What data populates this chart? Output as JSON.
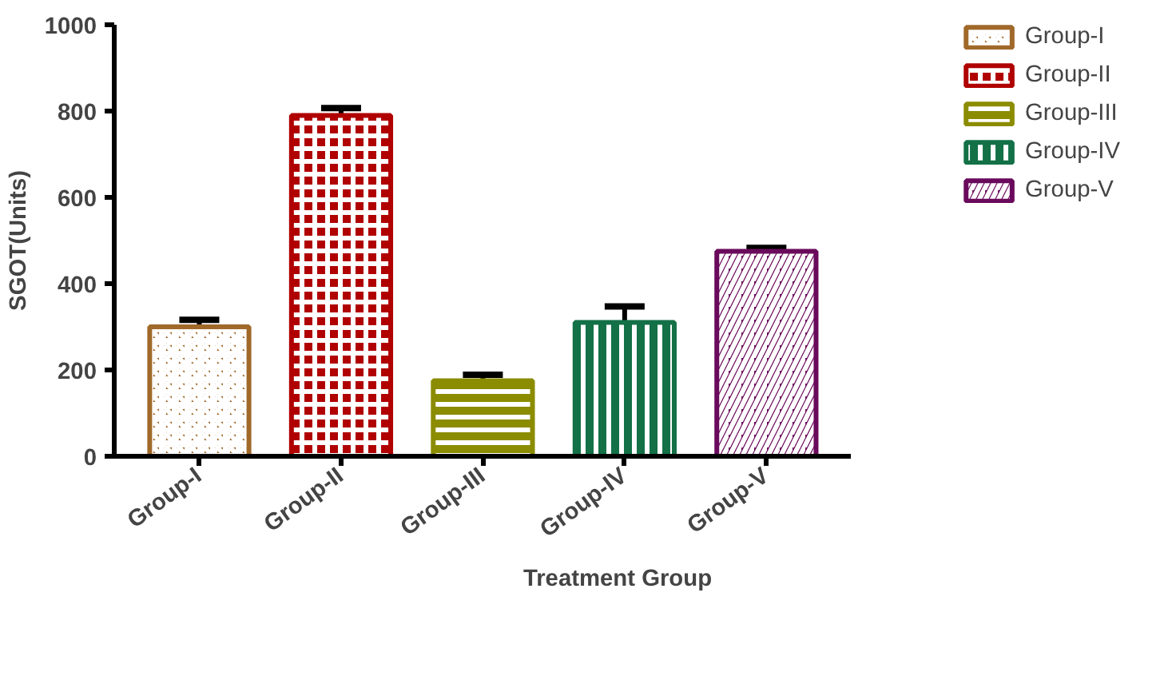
{
  "chart_data": {
    "type": "bar",
    "xlabel": "Treatment Group",
    "ylabel": "SGOT(Units)",
    "categories": [
      "Group-I",
      "Group-II",
      "Group-III",
      "Group-IV",
      "Group-V"
    ],
    "series": [
      {
        "name": "Group-I",
        "color": "#a0692a",
        "values": [
          300,
          null,
          null,
          null,
          null
        ],
        "errors": [
          [
            300,
            316
          ],
          null,
          null,
          null,
          null
        ]
      },
      {
        "name": "Group-II",
        "color": "#b00000",
        "values": [
          null,
          790,
          null,
          null,
          null
        ],
        "errors": [
          null,
          [
            790,
            807
          ],
          null,
          null,
          null
        ]
      },
      {
        "name": "Group-III",
        "color": "#8c8c00",
        "values": [
          null,
          null,
          175,
          null,
          null
        ],
        "errors": [
          null,
          null,
          [
            175,
            189
          ],
          null,
          null
        ]
      },
      {
        "name": "Group-IV",
        "color": "#137047",
        "values": [
          null,
          null,
          null,
          310,
          null
        ],
        "errors": [
          null,
          null,
          null,
          [
            310,
            347
          ],
          null
        ]
      },
      {
        "name": "Group-V",
        "color": "#6a0a5c",
        "values": [
          null,
          null,
          null,
          null,
          475
        ],
        "errors": [
          null,
          null,
          null,
          null,
          [
            475,
            483
          ]
        ]
      }
    ],
    "ylim": [
      0,
      1000
    ],
    "yticks": [
      0,
      200,
      400,
      600,
      800,
      1000
    ],
    "grid": false,
    "legend": "top right"
  }
}
